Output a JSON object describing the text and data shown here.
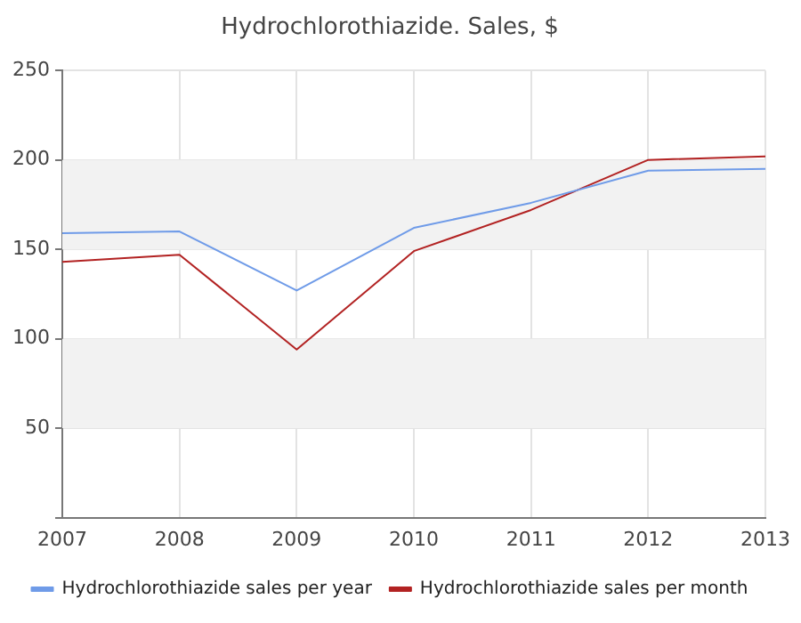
{
  "chart_data": {
    "type": "line",
    "title": "Hydrochlorothiazide. Sales, $",
    "categories": [
      "2007",
      "2008",
      "2009",
      "2010",
      "2011",
      "2012",
      "2013"
    ],
    "series": [
      {
        "name": "Hydrochlorothiazide sales per year",
        "color": "#6f9be8",
        "values": [
          159,
          160,
          127,
          162,
          176,
          194,
          195
        ]
      },
      {
        "name": "Hydrochlorothiazide sales per month",
        "color": "#b22222",
        "values": [
          143,
          147,
          94,
          149,
          172,
          200,
          202
        ]
      }
    ],
    "ylim": [
      0,
      250
    ],
    "yticks": [
      {
        "value": 0,
        "label": null
      },
      50,
      100,
      150,
      200,
      250
    ],
    "bands": [
      {
        "axis": "y",
        "from": 50,
        "to": 100,
        "color": "#f2f2f2"
      },
      {
        "axis": "y",
        "from": 150,
        "to": 200,
        "color": "#f2f2f2"
      }
    ],
    "grid": true,
    "legend": "bottom",
    "marker": "none",
    "line_style": "solid"
  }
}
